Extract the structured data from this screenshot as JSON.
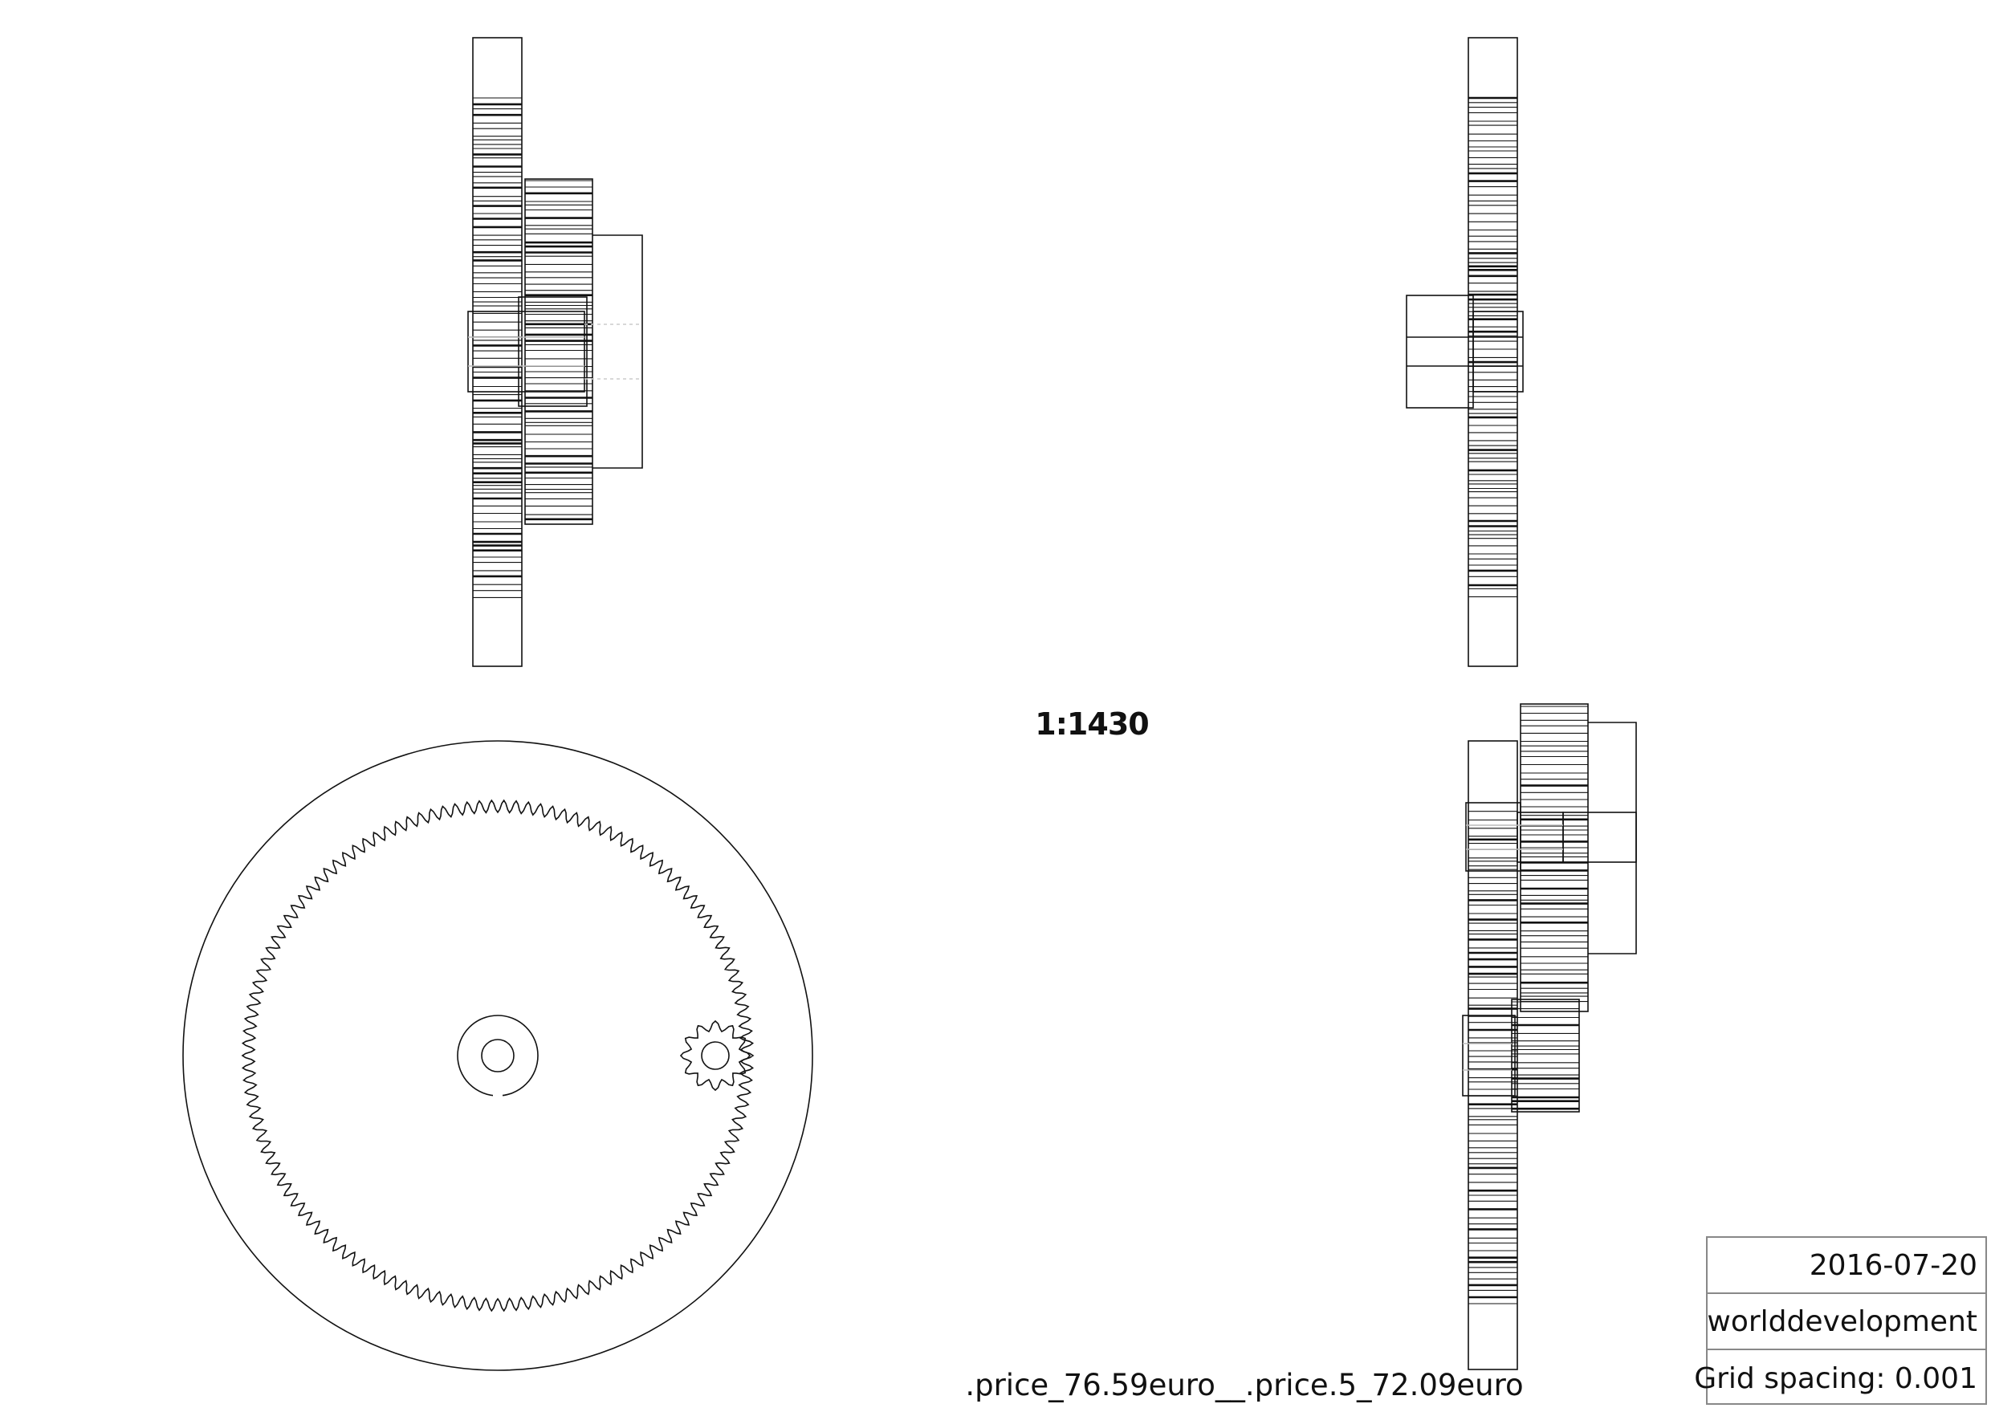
{
  "drawing": {
    "scale": "1:1430",
    "filename": ".price_76.59euro__.price.5_72.09euro"
  },
  "title_block": {
    "date": "2016-07-20",
    "author": "worlddevelopment",
    "grid_spacing": "Grid spacing: 0.001"
  },
  "views": [
    {
      "name": "side-view-top-left"
    },
    {
      "name": "side-view-top-right"
    },
    {
      "name": "front-view-ring-gear"
    },
    {
      "name": "side-view-bottom-right"
    }
  ],
  "gear": {
    "ring_gear_teeth": 130,
    "pinion_teeth": 12
  },
  "colors": {
    "line": "#111111",
    "faint": "#bbbbbb",
    "border": "#888888"
  }
}
